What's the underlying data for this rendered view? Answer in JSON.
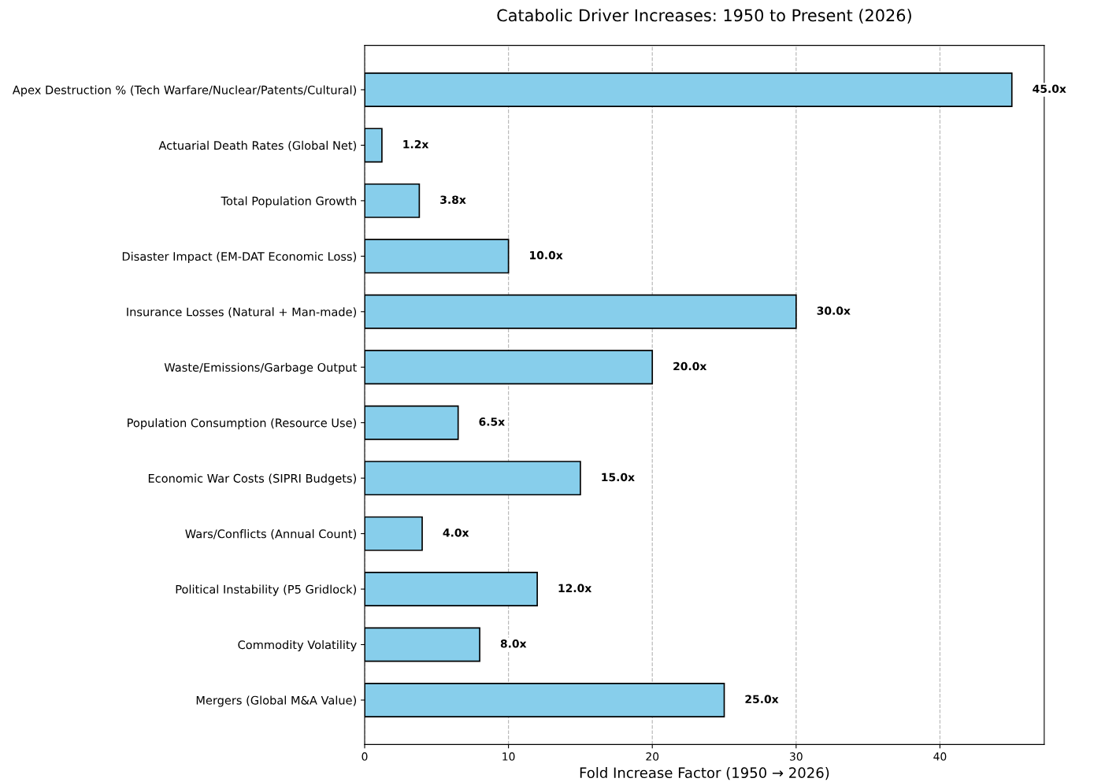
{
  "chart_data": {
    "type": "bar",
    "orientation": "horizontal",
    "title": "Catabolic Driver Increases: 1950 to Present (2026)",
    "xlabel": "Fold Increase Factor (1950 → 2026)",
    "categories": [
      "Apex Destruction % (Tech Warfare/Nuclear/Patents/Cultural)",
      "Actuarial Death Rates (Global Net)",
      "Total Population Growth",
      "Disaster Impact (EM-DAT Economic Loss)",
      "Insurance Losses (Natural + Man-made)",
      "Waste/Emissions/Garbage Output",
      "Population Consumption (Resource Use)",
      "Economic War Costs (SIPRI Budgets)",
      "Wars/Conflicts (Annual Count)",
      "Political Instability (P5 Gridlock)",
      "Commodity Volatility",
      "Mergers (Global M&A Value)"
    ],
    "values": [
      45.0,
      1.2,
      3.8,
      10.0,
      30.0,
      20.0,
      6.5,
      15.0,
      4.0,
      12.0,
      8.0,
      25.0
    ],
    "value_labels": [
      "45.0x",
      "1.2x",
      "3.8x",
      "10.0x",
      "30.0x",
      "20.0x",
      "6.5x",
      "15.0x",
      "4.0x",
      "12.0x",
      "8.0x",
      "25.0x"
    ],
    "color": "#87ceeb",
    "xlim": [
      0,
      47.25
    ],
    "xticks": [
      0,
      10,
      20,
      30,
      40
    ],
    "grid": "x",
    "legend": false
  }
}
